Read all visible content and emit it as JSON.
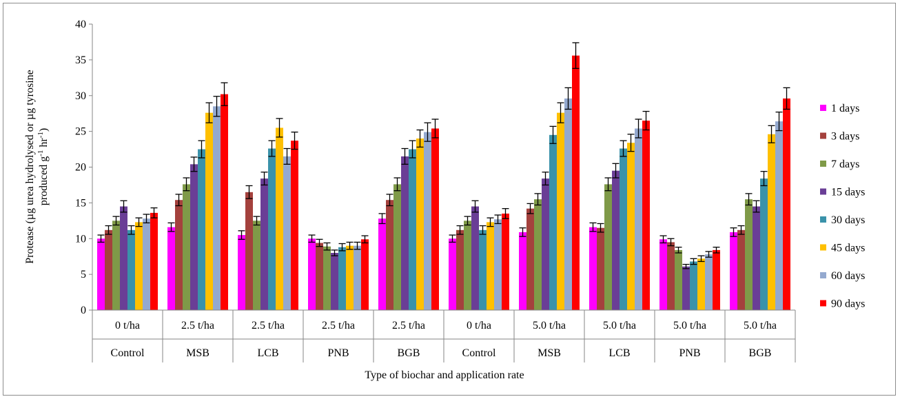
{
  "chart_data": {
    "type": "bar",
    "ylabel_line1": "Protease (µg urea hydrolysed or µg tyrosine",
    "ylabel_line2_main": "produced g",
    "ylabel_sup1": "-1",
    "ylabel_mid": " hr",
    "ylabel_sup2": "-1",
    "ylabel_end": ")",
    "xlabel": "Type of biochar and application rate",
    "ylim": [
      0,
      40
    ],
    "yticks": [
      "0",
      "5",
      "10",
      "15",
      "20",
      "25",
      "30",
      "35",
      "40"
    ],
    "categories": [
      {
        "rate": "0 t/ha",
        "type": "Control"
      },
      {
        "rate": "2.5 t/ha",
        "type": "MSB"
      },
      {
        "rate": "2.5 t/ha",
        "type": "LCB"
      },
      {
        "rate": "2.5 t/ha",
        "type": "PNB"
      },
      {
        "rate": "2.5 t/ha",
        "type": "BGB"
      },
      {
        "rate": "0 t/ha",
        "type": "Control"
      },
      {
        "rate": "5.0 t/ha",
        "type": "MSB"
      },
      {
        "rate": "5.0 t/ha",
        "type": "LCB"
      },
      {
        "rate": "5.0 t/ha",
        "type": "PNB"
      },
      {
        "rate": "5.0 t/ha",
        "type": "BGB"
      }
    ],
    "series": [
      {
        "name": "1 days",
        "color": "#ff00ff",
        "values": [
          10.0,
          11.6,
          10.5,
          10.0,
          12.8,
          10.0,
          10.9,
          11.6,
          9.9,
          10.9
        ],
        "errors": [
          0.5,
          0.6,
          0.6,
          0.5,
          0.7,
          0.5,
          0.6,
          0.6,
          0.5,
          0.6
        ]
      },
      {
        "name": "3 days",
        "color": "#a4413d",
        "values": [
          11.2,
          15.4,
          16.5,
          9.4,
          15.4,
          11.2,
          14.2,
          11.5,
          9.5,
          11.2
        ],
        "errors": [
          0.6,
          0.8,
          0.9,
          0.5,
          0.8,
          0.6,
          0.7,
          0.6,
          0.5,
          0.6
        ]
      },
      {
        "name": "7 days",
        "color": "#7f9a48",
        "values": [
          12.5,
          17.6,
          12.5,
          8.9,
          17.6,
          12.5,
          15.5,
          17.6,
          8.4,
          15.5
        ],
        "errors": [
          0.6,
          0.9,
          0.6,
          0.5,
          0.9,
          0.6,
          0.8,
          0.9,
          0.4,
          0.8
        ]
      },
      {
        "name": "15 days",
        "color": "#6a3e96",
        "values": [
          14.5,
          20.4,
          18.4,
          8.0,
          21.5,
          14.5,
          18.4,
          19.5,
          6.1,
          14.5
        ],
        "errors": [
          0.8,
          1.0,
          0.9,
          0.4,
          1.1,
          0.8,
          0.9,
          1.0,
          0.3,
          0.8
        ]
      },
      {
        "name": "30 days",
        "color": "#3a92aa",
        "values": [
          11.2,
          22.5,
          22.6,
          8.8,
          22.5,
          11.2,
          24.5,
          22.6,
          6.8,
          18.4
        ],
        "errors": [
          0.6,
          1.2,
          1.1,
          0.5,
          1.2,
          0.6,
          1.2,
          1.1,
          0.4,
          1.0
        ]
      },
      {
        "name": "45 days",
        "color": "#ffc000",
        "values": [
          12.3,
          27.6,
          25.5,
          9.0,
          24.0,
          12.3,
          27.6,
          23.4,
          7.2,
          24.6
        ],
        "errors": [
          0.6,
          1.4,
          1.3,
          0.5,
          1.2,
          0.6,
          1.4,
          1.2,
          0.4,
          1.2
        ]
      },
      {
        "name": "60 days",
        "color": "#94a9cf",
        "values": [
          12.8,
          28.5,
          21.5,
          9.0,
          24.9,
          12.7,
          29.6,
          25.4,
          7.8,
          26.4
        ],
        "errors": [
          0.6,
          1.4,
          1.1,
          0.5,
          1.3,
          0.6,
          1.5,
          1.3,
          0.4,
          1.3
        ]
      },
      {
        "name": "90 days",
        "color": "#ff0000",
        "values": [
          13.6,
          30.2,
          23.7,
          9.9,
          25.4,
          13.5,
          35.6,
          26.5,
          8.4,
          29.6
        ],
        "errors": [
          0.7,
          1.6,
          1.2,
          0.5,
          1.3,
          0.7,
          1.8,
          1.3,
          0.4,
          1.5
        ]
      }
    ],
    "legend_position": "right",
    "grid": false,
    "error_bars": true
  }
}
